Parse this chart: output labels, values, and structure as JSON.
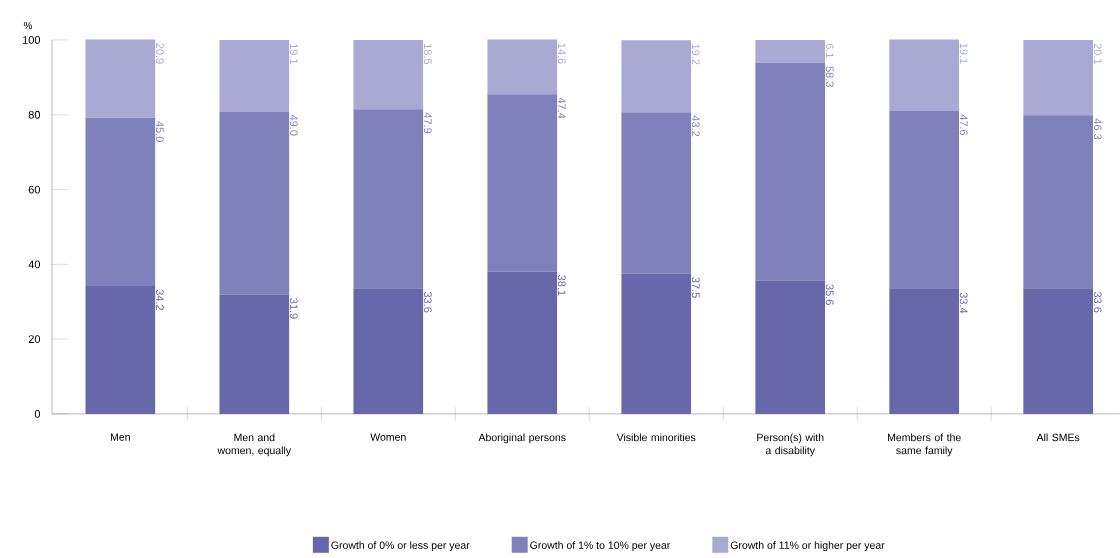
{
  "chart_data": {
    "type": "bar",
    "stacked": true,
    "ylabel": "%",
    "categories": [
      "Men",
      "Men and women, equally",
      "Women",
      "Aboriginal persons",
      "Visible minorities",
      "Person(s) with a disability",
      "Members of the same family",
      "All SMEs"
    ],
    "series": [
      {
        "name": "Growth of 0% or less per year",
        "color": "#6767a9",
        "values": [
          34.2,
          31.9,
          33.6,
          38.1,
          37.5,
          35.6,
          33.4,
          33.6
        ],
        "value_labels": [
          "34.2",
          "31.9",
          "33.6",
          "38.1",
          "37.5",
          "35.6",
          "33.4",
          "33.6"
        ]
      },
      {
        "name": "Growth of 1% to 10% per year",
        "color": "#8080ba",
        "values": [
          45.0,
          49.0,
          47.9,
          47.4,
          43.2,
          58.3,
          47.6,
          46.3
        ],
        "value_labels": [
          "45.0",
          "49.0",
          "47.9",
          "47.4",
          "43.2",
          "58.3",
          "47.6",
          "46.3"
        ]
      },
      {
        "name": "Growth of 11% or higher per year",
        "color": "#a9a9d3",
        "values": [
          20.9,
          19.1,
          18.5,
          14.6,
          19.2,
          6.1,
          19.1,
          20.1
        ],
        "value_labels": [
          "20.9",
          "19.1",
          "18.5",
          "14.6",
          "19.2",
          "6.1",
          "19.1",
          "20.1"
        ]
      }
    ],
    "ylim": [
      0,
      100
    ],
    "yticks": [
      0,
      20,
      40,
      60,
      80,
      100
    ],
    "grid": false,
    "legend": "bottom"
  }
}
